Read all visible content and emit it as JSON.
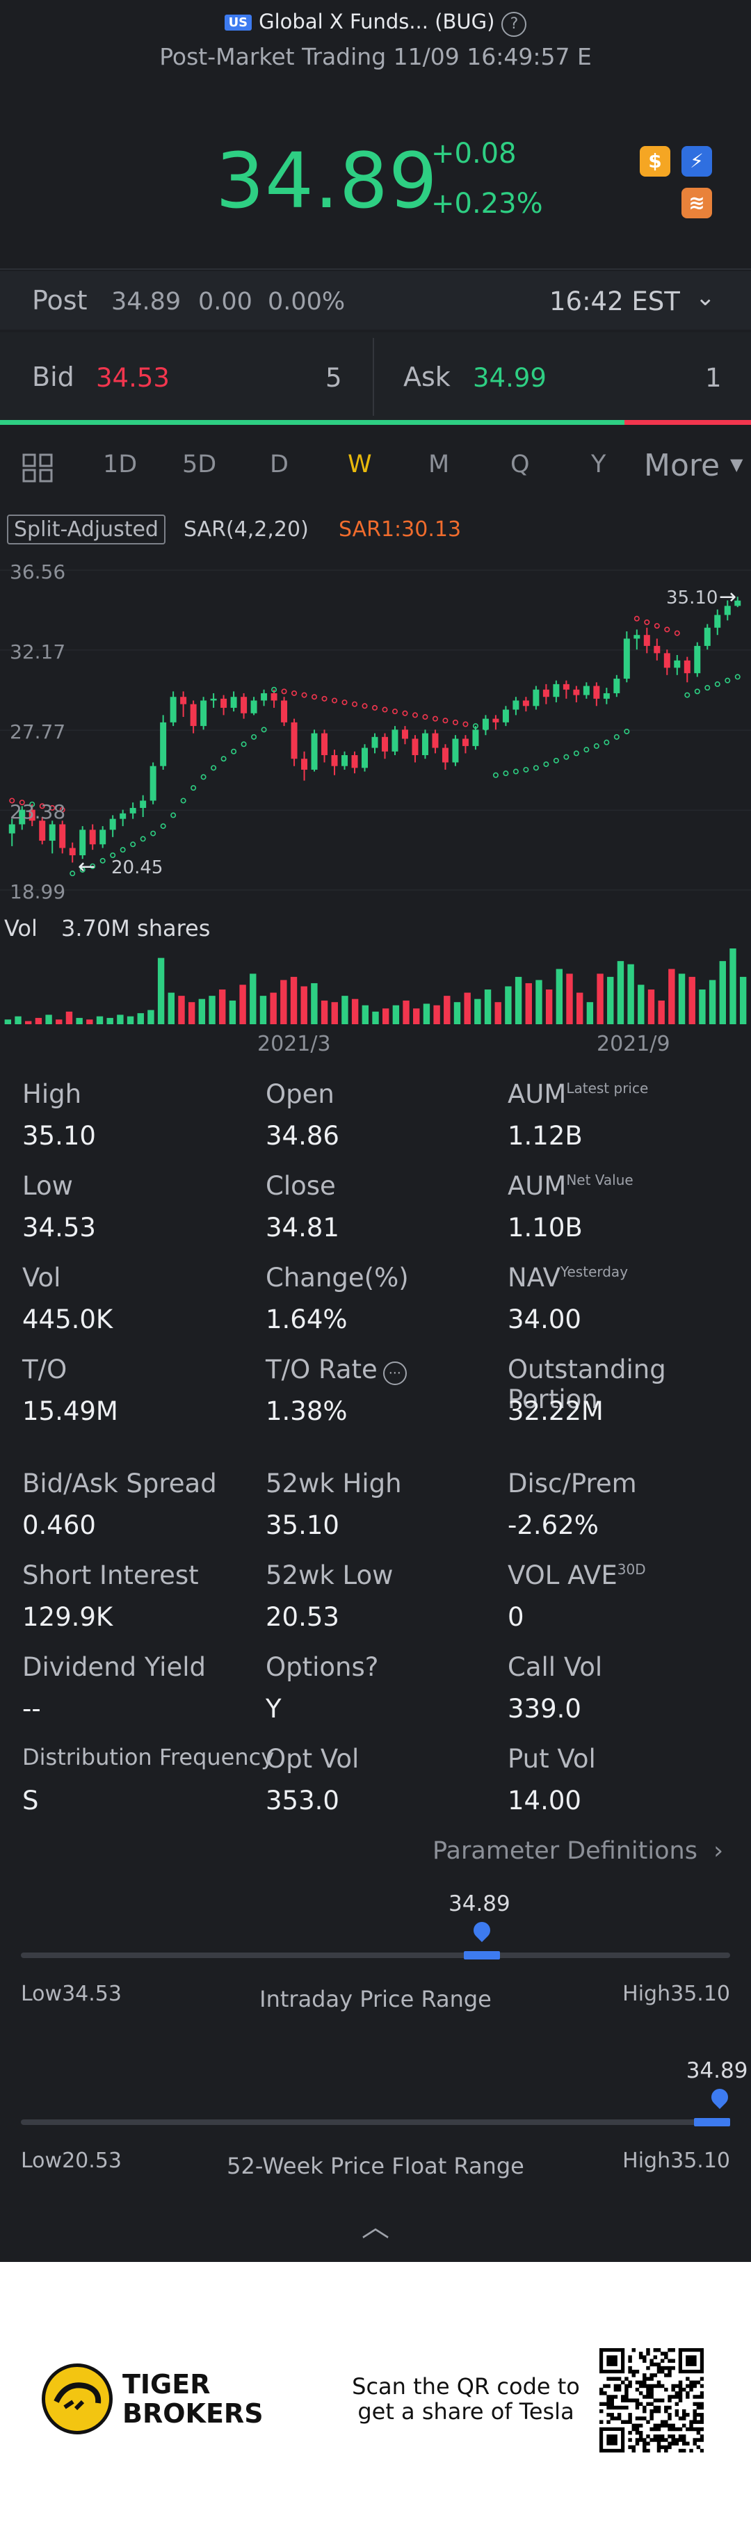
{
  "header": {
    "market_badge": "US",
    "title": "Global X Funds... (BUG)",
    "subtitle": "Post-Market Trading 11/09 16:49:57 E"
  },
  "quote": {
    "price": "34.89",
    "change": "+0.08",
    "change_pct": "+0.23%",
    "icons": [
      "dollar-badge-icon",
      "lightning-badge-icon",
      "book-badge-icon"
    ]
  },
  "post": {
    "label": "Post",
    "price": "34.89",
    "change": "0.00",
    "change_pct": "0.00%",
    "time": "16:42 EST"
  },
  "bidask": {
    "bid_label": "Bid",
    "bid": "34.53",
    "bid_size": "5",
    "ask_label": "Ask",
    "ask": "34.99",
    "ask_size": "1"
  },
  "tabs": [
    "1D",
    "5D",
    "D",
    "W",
    "M",
    "Q",
    "Y",
    "More"
  ],
  "active_tab": "W",
  "indicators": {
    "adjust": "Split-Adjusted",
    "sar": "SAR(4,2,20)",
    "sar1": "SAR1:30.13"
  },
  "colors": {
    "up": "#2ecf83",
    "down": "#f2364e",
    "accent": "#e8b90c",
    "blue": "#3d7bf0",
    "sar_up": "#2ecf83",
    "sar_down": "#f2364e"
  },
  "chart_data": {
    "type": "candlestick",
    "y_ticks": [
      "36.56",
      "32.17",
      "27.77",
      "23.38",
      "18.99"
    ],
    "ylim": [
      18.99,
      36.56
    ],
    "x_labels": [
      "2021/3",
      "2021/9"
    ],
    "high_marker": "35.10",
    "low_marker": "20.45",
    "candles": [
      [
        22.1,
        22.6,
        21.4,
        22.9
      ],
      [
        22.6,
        23.4,
        22.3,
        23.6
      ],
      [
        23.4,
        22.8,
        22.5,
        23.7
      ],
      [
        22.8,
        21.7,
        21.5,
        23.0
      ],
      [
        21.7,
        22.6,
        21.0,
        22.8
      ],
      [
        22.6,
        21.3,
        21.0,
        22.8
      ],
      [
        21.3,
        20.9,
        20.5,
        21.6
      ],
      [
        20.9,
        22.3,
        20.7,
        22.5
      ],
      [
        22.3,
        21.5,
        21.2,
        22.6
      ],
      [
        21.5,
        22.3,
        21.3,
        22.5
      ],
      [
        22.3,
        22.9,
        21.9,
        23.1
      ],
      [
        22.9,
        23.2,
        22.5,
        23.4
      ],
      [
        23.2,
        23.5,
        22.9,
        23.8
      ],
      [
        23.5,
        23.9,
        23.0,
        24.2
      ],
      [
        23.9,
        25.8,
        23.7,
        26.0
      ],
      [
        25.8,
        28.2,
        25.6,
        28.6
      ],
      [
        28.2,
        29.6,
        28.0,
        29.9
      ],
      [
        29.6,
        29.2,
        28.5,
        29.9
      ],
      [
        29.2,
        28.0,
        27.6,
        29.4
      ],
      [
        28.0,
        29.4,
        27.8,
        29.6
      ],
      [
        29.4,
        29.5,
        29.0,
        29.8
      ],
      [
        29.5,
        29.0,
        28.6,
        29.7
      ],
      [
        29.0,
        29.6,
        28.8,
        29.9
      ],
      [
        29.6,
        28.7,
        28.4,
        29.8
      ],
      [
        28.7,
        29.4,
        28.6,
        29.6
      ],
      [
        29.4,
        29.8,
        29.1,
        30.0
      ],
      [
        29.8,
        29.4,
        29.0,
        30.0
      ],
      [
        29.4,
        28.2,
        28.0,
        29.6
      ],
      [
        28.2,
        26.2,
        25.8,
        28.4
      ],
      [
        26.2,
        25.6,
        25.0,
        26.6
      ],
      [
        25.6,
        27.6,
        25.5,
        27.8
      ],
      [
        27.6,
        26.4,
        26.0,
        27.8
      ],
      [
        26.4,
        25.8,
        25.3,
        26.7
      ],
      [
        25.8,
        26.4,
        25.6,
        26.6
      ],
      [
        26.4,
        25.7,
        25.4,
        26.6
      ],
      [
        25.7,
        26.8,
        25.5,
        27.0
      ],
      [
        26.8,
        27.4,
        26.5,
        27.6
      ],
      [
        27.4,
        26.6,
        26.2,
        27.6
      ],
      [
        26.6,
        27.8,
        26.4,
        28.0
      ],
      [
        27.8,
        27.3,
        27.0,
        28.0
      ],
      [
        27.3,
        26.4,
        26.0,
        27.5
      ],
      [
        26.4,
        27.6,
        26.2,
        27.8
      ],
      [
        27.6,
        26.8,
        26.5,
        27.8
      ],
      [
        26.8,
        26.0,
        25.6,
        27.0
      ],
      [
        26.0,
        27.3,
        25.8,
        27.5
      ],
      [
        27.3,
        26.9,
        26.5,
        27.5
      ],
      [
        26.9,
        27.8,
        26.7,
        28.0
      ],
      [
        27.8,
        28.4,
        27.5,
        28.6
      ],
      [
        28.4,
        28.2,
        27.8,
        28.6
      ],
      [
        28.2,
        28.9,
        28.0,
        29.1
      ],
      [
        28.9,
        29.4,
        28.6,
        29.6
      ],
      [
        29.4,
        29.1,
        28.8,
        29.6
      ],
      [
        29.1,
        30.0,
        28.9,
        30.2
      ],
      [
        30.0,
        29.6,
        29.2,
        30.3
      ],
      [
        29.6,
        30.3,
        29.3,
        30.5
      ],
      [
        30.3,
        30.0,
        29.5,
        30.5
      ],
      [
        30.0,
        29.7,
        29.3,
        30.2
      ],
      [
        29.7,
        30.2,
        29.5,
        30.4
      ],
      [
        30.2,
        29.5,
        29.1,
        30.4
      ],
      [
        29.5,
        29.8,
        29.2,
        30.1
      ],
      [
        29.8,
        30.6,
        29.6,
        30.8
      ],
      [
        30.6,
        32.8,
        30.4,
        33.2
      ],
      [
        32.8,
        33.0,
        32.2,
        33.3
      ],
      [
        33.0,
        32.4,
        32.0,
        33.4
      ],
      [
        32.4,
        32.0,
        31.6,
        32.8
      ],
      [
        32.0,
        31.2,
        30.8,
        32.2
      ],
      [
        31.2,
        31.6,
        30.8,
        31.9
      ],
      [
        31.6,
        30.9,
        30.4,
        31.8
      ],
      [
        30.9,
        32.4,
        30.7,
        32.6
      ],
      [
        32.4,
        33.4,
        32.2,
        33.6
      ],
      [
        33.4,
        34.1,
        33.0,
        34.4
      ],
      [
        34.1,
        34.6,
        33.8,
        34.9
      ],
      [
        34.6,
        34.89,
        34.53,
        35.1
      ]
    ],
    "sar": [
      23.9,
      23.8,
      23.7,
      23.6,
      23.5,
      23.4,
      19.9,
      20.1,
      20.3,
      20.6,
      20.9,
      21.2,
      21.5,
      21.8,
      22.1,
      22.5,
      23.1,
      23.9,
      24.6,
      25.2,
      25.7,
      26.2,
      26.6,
      27.0,
      27.4,
      27.8,
      30.0,
      29.9,
      29.8,
      29.7,
      29.6,
      29.5,
      29.4,
      29.3,
      29.2,
      29.1,
      29.0,
      28.9,
      28.8,
      28.7,
      28.6,
      28.5,
      28.4,
      28.3,
      28.2,
      28.1,
      28.0,
      27.9,
      25.3,
      25.4,
      25.5,
      25.6,
      25.7,
      25.9,
      26.1,
      26.3,
      26.5,
      26.7,
      26.9,
      27.1,
      27.4,
      27.7,
      33.9,
      33.7,
      33.5,
      33.3,
      33.1,
      29.7,
      29.9,
      30.1,
      30.3,
      30.5,
      30.7
    ],
    "sar_dir": "auto",
    "volume_label": "Vol",
    "volume_value": "3.70M shares",
    "volume": [
      3,
      5,
      2,
      4,
      6,
      3,
      8,
      4,
      3,
      5,
      4,
      6,
      5,
      7,
      9,
      42,
      20,
      18,
      14,
      16,
      18,
      22,
      15,
      25,
      32,
      18,
      20,
      28,
      30,
      24,
      26,
      15,
      14,
      18,
      16,
      12,
      8,
      10,
      12,
      15,
      10,
      13,
      12,
      18,
      14,
      20,
      16,
      22,
      14,
      24,
      30,
      26,
      28,
      22,
      35,
      32,
      20,
      14,
      32,
      30,
      40,
      38,
      25,
      22,
      15,
      35,
      32,
      30,
      22,
      28,
      40,
      48,
      30
    ]
  },
  "stats": [
    {
      "label": "High",
      "value": "35.10"
    },
    {
      "label": "Open",
      "value": "34.86"
    },
    {
      "label": "AUM",
      "sup": "Latest price",
      "value": "1.12B"
    },
    {
      "label": "Low",
      "value": "34.53"
    },
    {
      "label": "Close",
      "value": "34.81"
    },
    {
      "label": "AUM",
      "sup": "Net Value",
      "value": "1.10B"
    },
    {
      "label": "Vol",
      "value": "445.0K"
    },
    {
      "label": "Change(%)",
      "value": "1.64%"
    },
    {
      "label": "NAV",
      "sup": "Yesterday",
      "value": "34.00"
    },
    {
      "label": "T/O",
      "value": "15.49M"
    },
    {
      "label": "T/O Rate",
      "info": "⋯",
      "value": "1.38%"
    },
    {
      "label": "Outstanding Portion",
      "value": "32.22M"
    },
    {
      "label": "Bid/Ask Spread",
      "value": "0.460"
    },
    {
      "label": "52wk High",
      "value": "35.10"
    },
    {
      "label": "Disc/Prem",
      "value": "-2.62%"
    },
    {
      "label": "Short Interest",
      "value": "129.9K"
    },
    {
      "label": "52wk Low",
      "value": "20.53"
    },
    {
      "label": "VOL AVE",
      "sup": "30D",
      "value": "0"
    },
    {
      "label": "Dividend Yield",
      "value": "--"
    },
    {
      "label": "Options?",
      "value": "Y"
    },
    {
      "label": "Call Vol",
      "value": "339.0"
    },
    {
      "label": "Distribution Frequency",
      "value": "S"
    },
    {
      "label": "Opt Vol",
      "value": "353.0"
    },
    {
      "label": "Put Vol",
      "value": "14.00"
    }
  ],
  "param_link": "Parameter Definitions",
  "ranges": [
    {
      "current": "34.89",
      "position": 0.65,
      "low_label": "Low",
      "low": "34.53",
      "title": "Intraday Price Range",
      "high_label": "High",
      "high": "35.10"
    },
    {
      "current": "34.89",
      "position": 0.985,
      "low_label": "Low",
      "low": "20.53",
      "title": "52-Week Price Float Range",
      "high_label": "High",
      "high": "35.10"
    }
  ],
  "footer": {
    "brand_line1": "TIGER",
    "brand_line2": "BROKERS",
    "cta_line1": "Scan the QR code to",
    "cta_line2": "get a share of Tesla"
  }
}
